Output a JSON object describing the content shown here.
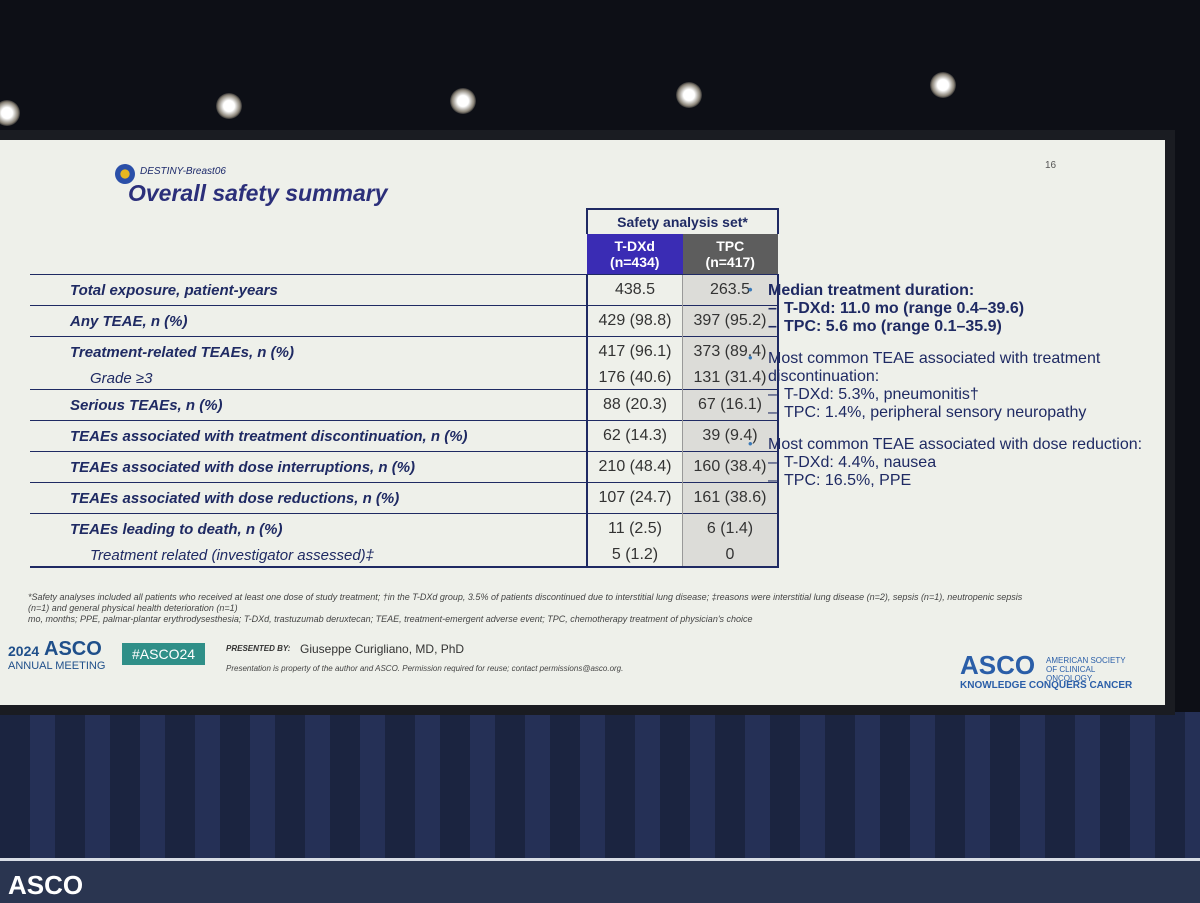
{
  "header": {
    "logo_text": "DESTINY-Breast06",
    "title": "Overall safety summary",
    "page_number": "16"
  },
  "table": {
    "group_header": "Safety analysis set*",
    "columns": [
      {
        "name": "T-DXd",
        "n": "(n=434)"
      },
      {
        "name": "TPC",
        "n": "(n=417)"
      }
    ],
    "rows": [
      {
        "label": "Total exposure, patient-years",
        "values": [
          "438.5",
          "263.5"
        ]
      },
      {
        "label": "Any TEAE, n (%)",
        "values": [
          "429 (98.8)",
          "397 (95.2)"
        ]
      },
      {
        "label": "Treatment-related TEAEs, n (%)",
        "values": [
          "417 (96.1)",
          "373 (89.4)"
        ],
        "sub": {
          "label": "Grade ≥3",
          "values": [
            "176 (40.6)",
            "131 (31.4)"
          ]
        }
      },
      {
        "label": "Serious TEAEs, n (%)",
        "values": [
          "88 (20.3)",
          "67 (16.1)"
        ]
      },
      {
        "label": "TEAEs associated with treatment discontinuation, n (%)",
        "values": [
          "62 (14.3)",
          "39 (9.4)"
        ]
      },
      {
        "label": "TEAEs associated with dose interruptions, n (%)",
        "values": [
          "210 (48.4)",
          "160 (38.4)"
        ]
      },
      {
        "label": "TEAEs associated with dose reductions, n (%)",
        "values": [
          "107 (24.7)",
          "161 (38.6)"
        ]
      },
      {
        "label": "TEAEs leading to death, n (%)",
        "values": [
          "11 (2.5)",
          "6 (1.4)"
        ],
        "sub": {
          "label": "Treatment related (investigator assessed)‡",
          "values": [
            "5 (1.2)",
            "0"
          ]
        }
      }
    ]
  },
  "bullets": [
    {
      "text": "Median treatment duration:",
      "items": [
        "T-DXd: 11.0 mo (range 0.4–39.6)",
        "TPC: 5.6 mo (range 0.1–35.9)"
      ]
    },
    {
      "text": "Most common TEAE associated with treatment discontinuation:",
      "items": [
        "T-DXd: 5.3%, pneumonitis†",
        "TPC: 1.4%, peripheral sensory neuropathy"
      ]
    },
    {
      "text": "Most common TEAE associated with dose reduction:",
      "items": [
        "T-DXd: 4.4%, nausea",
        "TPC: 16.5%, PPE"
      ]
    }
  ],
  "footnotes": [
    "*Safety analyses included all patients who received at least one dose of study treatment; †in the T-DXd group, 3.5% of patients discontinued due to interstitial lung disease; ‡reasons were interstitial lung disease (n=2), sepsis (n=1), neutropenic sepsis (n=1) and general physical health deterioration (n=1)",
    "mo, months; PPE, palmar-plantar erythrodysesthesia; T-DXd, trastuzumab deruxtecan; TEAE, treatment-emergent adverse event; TPC, chemotherapy treatment of physician's choice"
  ],
  "footer": {
    "year": "2024",
    "asco": "ASCO",
    "meeting": "ANNUAL MEETING",
    "hashtag": "#ASCO24",
    "presented_by": "PRESENTED BY:",
    "presenter": "Giuseppe Curigliano, MD, PhD",
    "disclaimer": "Presentation is property of the author and ASCO. Permission required for reuse; contact permissions@asco.org.",
    "logo": "ASCO",
    "society": "AMERICAN SOCIETY OF CLINICAL ONCOLOGY",
    "tagline": "KNOWLEDGE CONQUERS CANCER"
  },
  "stage_sign": "ASCO"
}
